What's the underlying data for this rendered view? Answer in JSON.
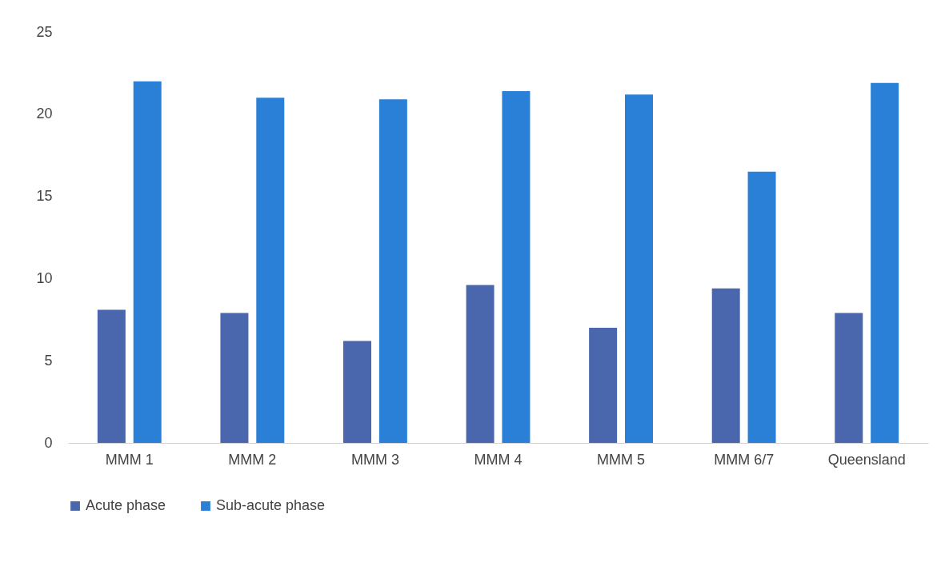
{
  "chart_data": {
    "type": "bar",
    "categories": [
      "MMM 1",
      "MMM 2",
      "MMM 3",
      "MMM 4",
      "MMM 5",
      "MMM 6/7",
      "Queensland"
    ],
    "series": [
      {
        "name": "Acute phase",
        "color": "#4a66ac",
        "values": [
          8.1,
          7.9,
          6.2,
          9.6,
          7.0,
          9.4,
          7.9
        ]
      },
      {
        "name": "Sub-acute phase",
        "color": "#2a7fd6",
        "values": [
          22.0,
          21.0,
          20.9,
          21.4,
          21.2,
          16.5,
          21.9
        ]
      }
    ],
    "ylim": [
      0,
      25
    ],
    "yticks": [
      0,
      5,
      10,
      15,
      20,
      25
    ],
    "grid": false,
    "legend": "bottom"
  }
}
